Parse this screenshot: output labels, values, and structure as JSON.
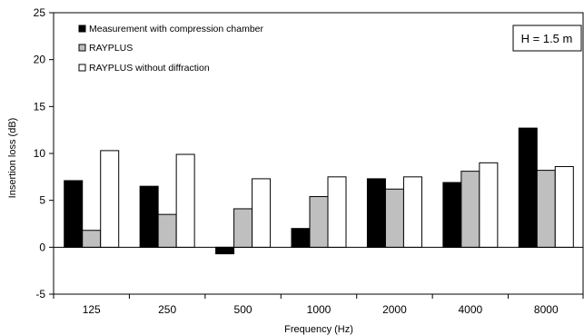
{
  "chart_data": {
    "type": "bar",
    "title": "",
    "xlabel": "Frequency (Hz)",
    "ylabel": "Insertion loss (dB)",
    "ylim": [
      -5,
      25
    ],
    "yticks": [
      -5,
      0,
      5,
      10,
      15,
      20,
      25
    ],
    "categories": [
      "125",
      "250",
      "500",
      "1000",
      "2000",
      "4000",
      "8000"
    ],
    "series": [
      {
        "name": "Measurement with compression chamber",
        "color": "#000000",
        "values": [
          7.1,
          6.5,
          -0.7,
          2.0,
          7.3,
          6.9,
          12.7
        ]
      },
      {
        "name": "RAYPLUS",
        "color": "#bfbfbf",
        "values": [
          1.8,
          3.5,
          4.1,
          5.4,
          6.2,
          8.1,
          8.2
        ]
      },
      {
        "name": "RAYPLUS without diffraction",
        "color": "#ffffff",
        "values": [
          10.3,
          9.9,
          7.3,
          7.5,
          7.5,
          9.0,
          8.6
        ]
      }
    ],
    "legend_position": "top-left",
    "annotation": "H = 1.5 m",
    "grid": false
  }
}
